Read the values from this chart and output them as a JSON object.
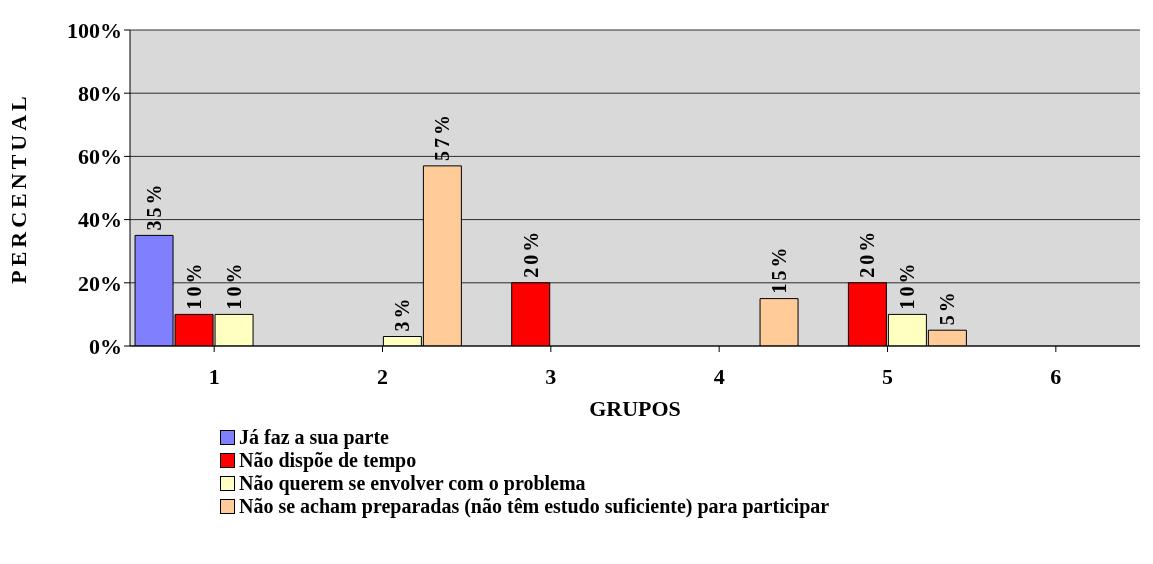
{
  "chart_data": {
    "type": "bar",
    "xlabel": "GRUPOS",
    "ylabel": "PERCENTUAL",
    "categories": [
      "1",
      "2",
      "3",
      "4",
      "5",
      "6"
    ],
    "series": [
      {
        "name": "Já faz a sua parte",
        "color": "#8080ff",
        "values": [
          35,
          null,
          null,
          null,
          null,
          null
        ],
        "value_labels": [
          "35%",
          null,
          null,
          null,
          null,
          null
        ]
      },
      {
        "name": "Não dispõe de tempo",
        "color": "#ff0000",
        "values": [
          10,
          null,
          20,
          null,
          20,
          null
        ],
        "value_labels": [
          "10%",
          null,
          "20%",
          null,
          "20%",
          null
        ]
      },
      {
        "name": "Não querem se envolver com o problema",
        "color": "#ffffc0",
        "values": [
          10,
          3,
          null,
          null,
          10,
          null
        ],
        "value_labels": [
          "10%",
          "3%",
          null,
          null,
          "10%",
          null
        ]
      },
      {
        "name": "Não se acham preparadas (não têm estudo suficiente) para participar",
        "color": "#ffcc99",
        "values": [
          null,
          57,
          null,
          15,
          5,
          null
        ],
        "value_labels": [
          null,
          "57%",
          null,
          "15%",
          "5%",
          null
        ]
      }
    ],
    "ylim": [
      0,
      100
    ],
    "yticks": [
      {
        "value": 0,
        "label": "0%"
      },
      {
        "value": 20,
        "label": "20%"
      },
      {
        "value": 40,
        "label": "40%"
      },
      {
        "value": 60,
        "label": "60%"
      },
      {
        "value": 80,
        "label": "80%"
      },
      {
        "value": 100,
        "label": "100%"
      }
    ],
    "grid": "y",
    "legend": "bottom"
  }
}
